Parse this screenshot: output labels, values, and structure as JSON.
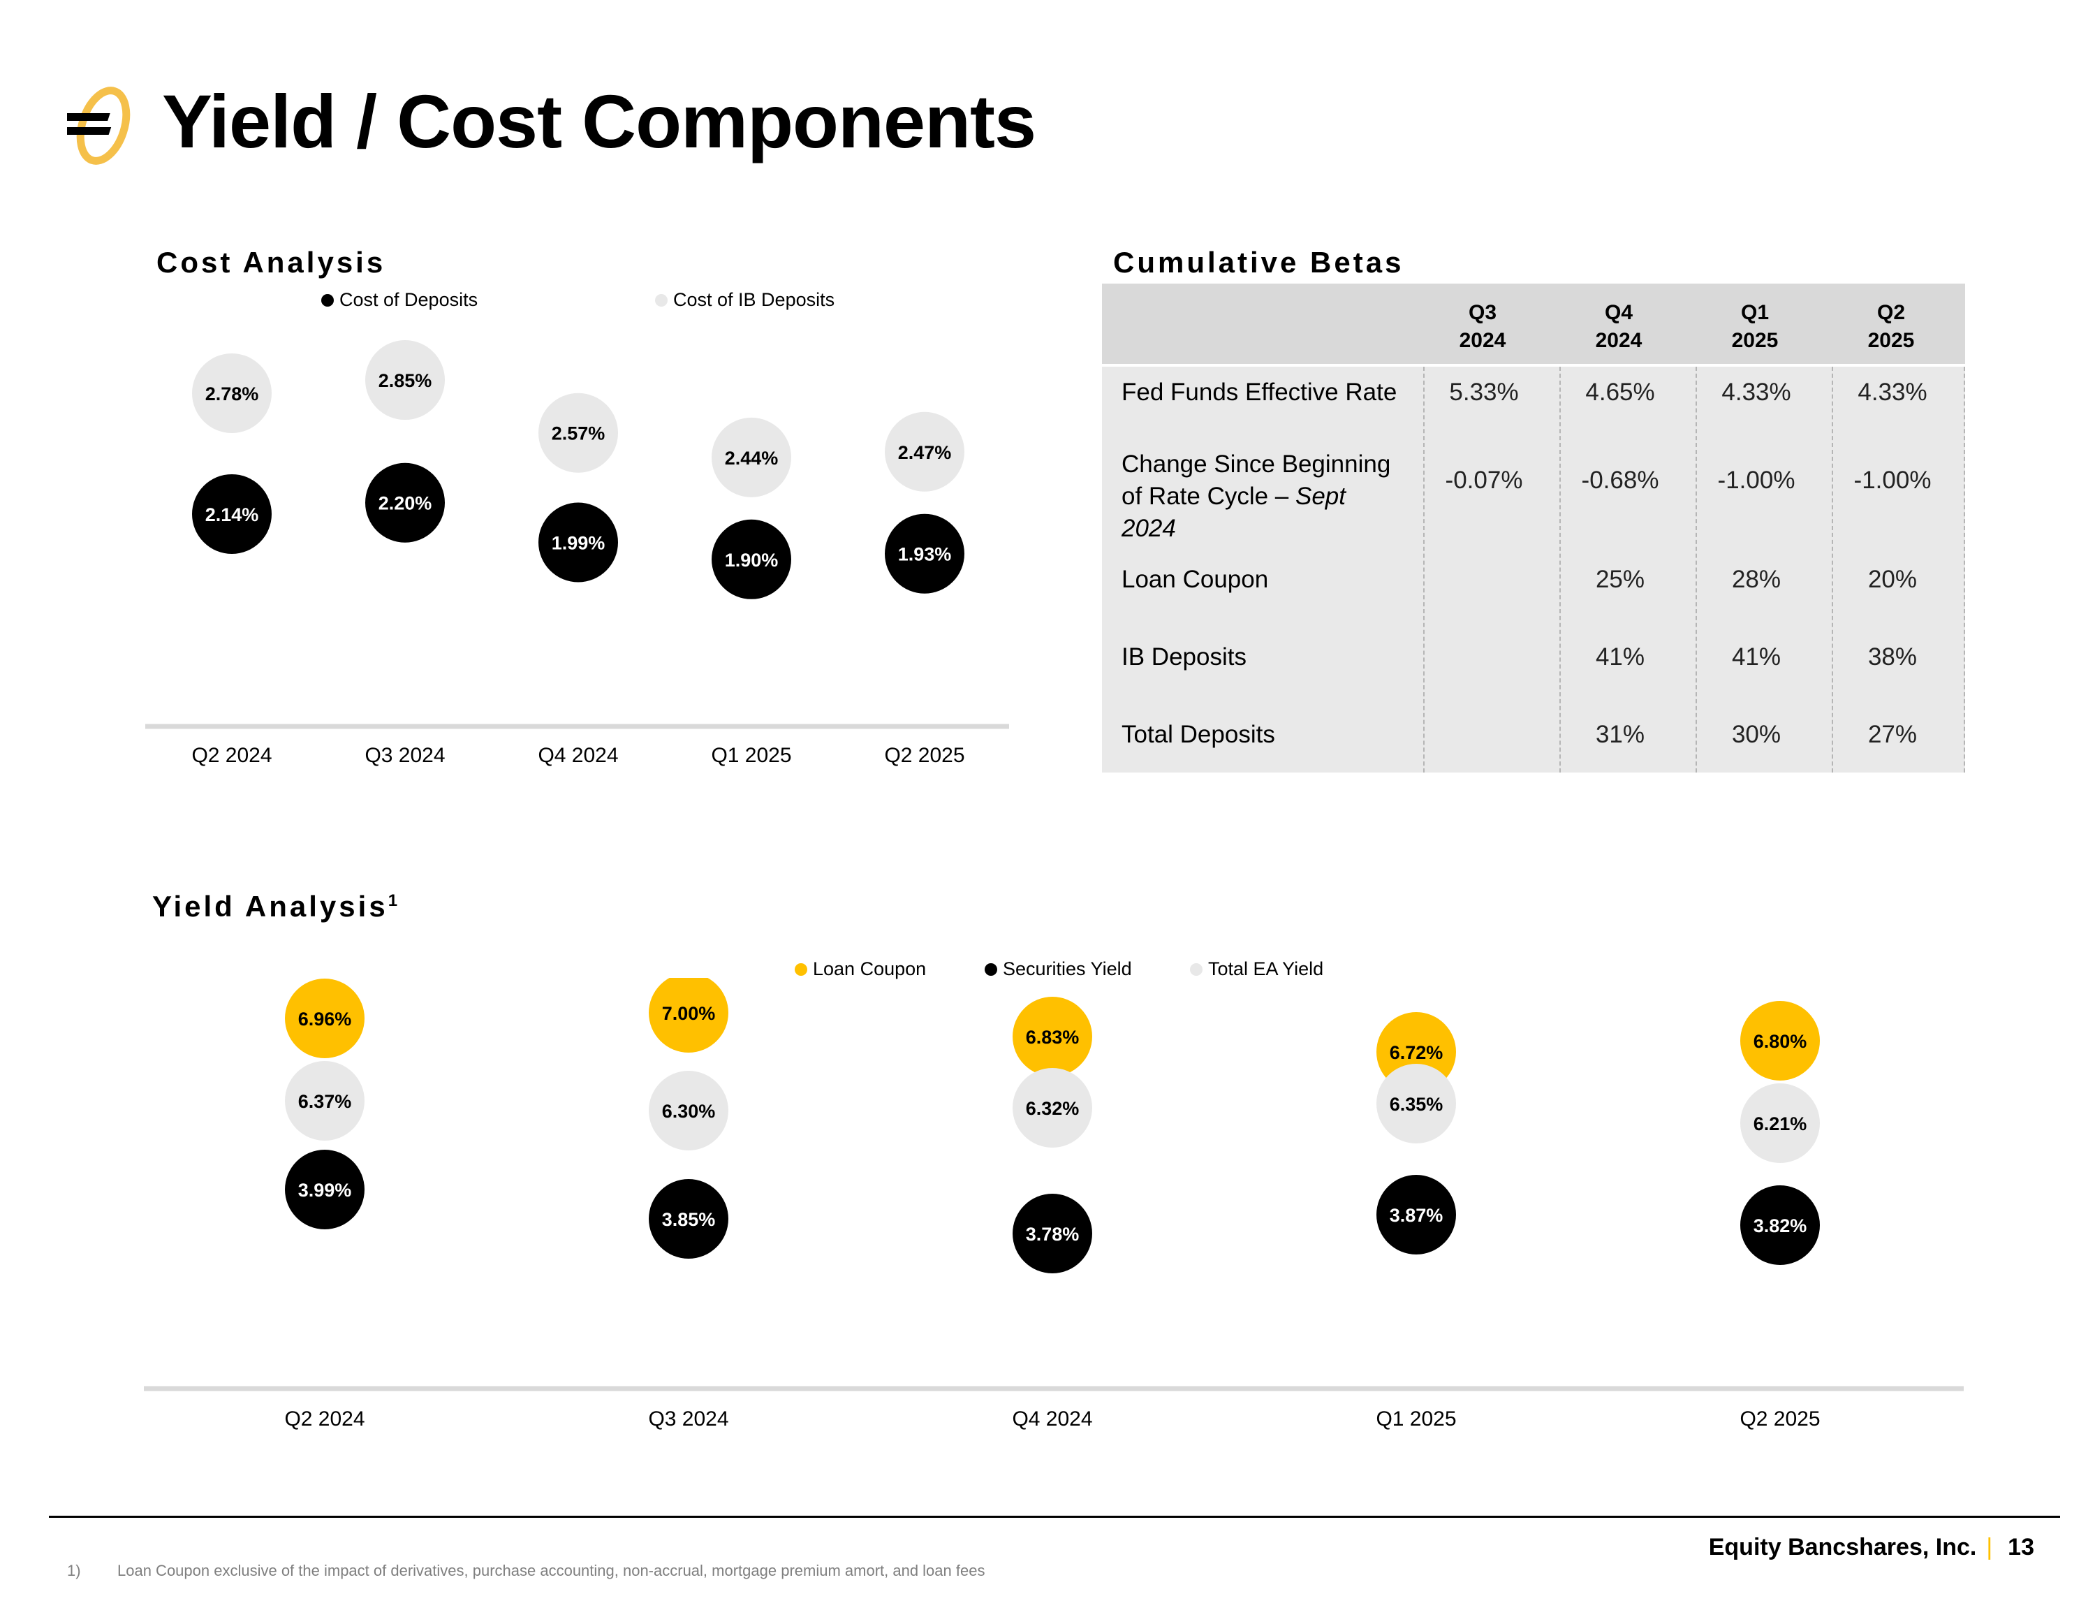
{
  "header": {
    "title": "Yield / Cost Components",
    "logo_icon": "equity-bancshares-logo-icon"
  },
  "cost_analysis": {
    "title": "Cost Analysis"
  },
  "betas": {
    "title": "Cumulative Betas",
    "columns": [
      {
        "quarter": "Q3",
        "year": "2024"
      },
      {
        "quarter": "Q4",
        "year": "2024"
      },
      {
        "quarter": "Q1",
        "year": "2025"
      },
      {
        "quarter": "Q2",
        "year": "2025"
      }
    ],
    "rows": [
      {
        "label": "Fed Funds Effective Rate",
        "values": [
          "5.33%",
          "4.65%",
          "4.33%",
          "4.33%"
        ]
      },
      {
        "label_line1": "Change Since Beginning",
        "label_line2_prefix": "of Rate Cycle – ",
        "label_line2_italic": "Sept 2024",
        "values": [
          "-0.07%",
          "-0.68%",
          "-1.00%",
          "-1.00%"
        ]
      },
      {
        "label": "Loan Coupon",
        "values": [
          "",
          "25%",
          "28%",
          "20%"
        ]
      },
      {
        "label": "IB Deposits",
        "values": [
          "",
          "41%",
          "41%",
          "38%"
        ]
      },
      {
        "label": "Total Deposits",
        "values": [
          "",
          "31%",
          "30%",
          "27%"
        ]
      }
    ]
  },
  "yield_analysis": {
    "title": "Yield Analysis",
    "footnote_marker": "1"
  },
  "chart_data": [
    {
      "type": "scatter",
      "title": "Cost Analysis",
      "categories": [
        "Q2 2024",
        "Q3 2024",
        "Q4 2024",
        "Q1 2025",
        "Q2 2025"
      ],
      "series": [
        {
          "name": "Cost of Deposits",
          "color": "#000000",
          "label_color": "#ffffff",
          "values": [
            2.14,
            2.2,
            1.99,
            1.9,
            1.93
          ],
          "labels": [
            "2.14%",
            "2.20%",
            "1.99%",
            "1.90%",
            "1.93%"
          ]
        },
        {
          "name": "Cost of IB Deposits",
          "color": "#e8e8e8",
          "label_color": "#000000",
          "values": [
            2.78,
            2.85,
            2.57,
            2.44,
            2.47
          ],
          "labels": [
            "2.78%",
            "2.85%",
            "2.57%",
            "2.44%",
            "2.47%"
          ]
        }
      ],
      "ylim": [
        1.2,
        3.05
      ],
      "legend": "top"
    },
    {
      "type": "scatter",
      "title": "Yield Analysis",
      "categories": [
        "Q2 2024",
        "Q3 2024",
        "Q4 2024",
        "Q1 2025",
        "Q2 2025"
      ],
      "series": [
        {
          "name": "Loan Coupon",
          "color": "#ffc000",
          "label_color": "#000000",
          "values": [
            6.96,
            7.0,
            6.83,
            6.72,
            6.8
          ],
          "labels": [
            "6.96%",
            "7.00%",
            "6.83%",
            "6.72%",
            "6.80%"
          ]
        },
        {
          "name": "Securities Yield",
          "color": "#000000",
          "label_color": "#ffffff",
          "values": [
            3.99,
            3.85,
            3.78,
            3.87,
            3.82
          ],
          "labels": [
            "3.99%",
            "3.85%",
            "3.78%",
            "3.87%",
            "3.82%"
          ]
        },
        {
          "name": "Total EA Yield",
          "color": "#e8e8e8",
          "label_color": "#000000",
          "values": [
            6.37,
            6.3,
            6.32,
            6.35,
            6.21
          ],
          "labels": [
            "6.37%",
            "6.30%",
            "6.32%",
            "6.35%",
            "6.21%"
          ]
        }
      ],
      "legend": "top"
    }
  ],
  "footer": {
    "company": "Equity Bancshares, Inc.",
    "separator": "|",
    "page_number": "13",
    "footnote_number": "1)",
    "footnote_text": "Loan Coupon exclusive of the impact of  derivatives, purchase accounting, non-accrual, mortgage premium amort, and loan fees"
  }
}
